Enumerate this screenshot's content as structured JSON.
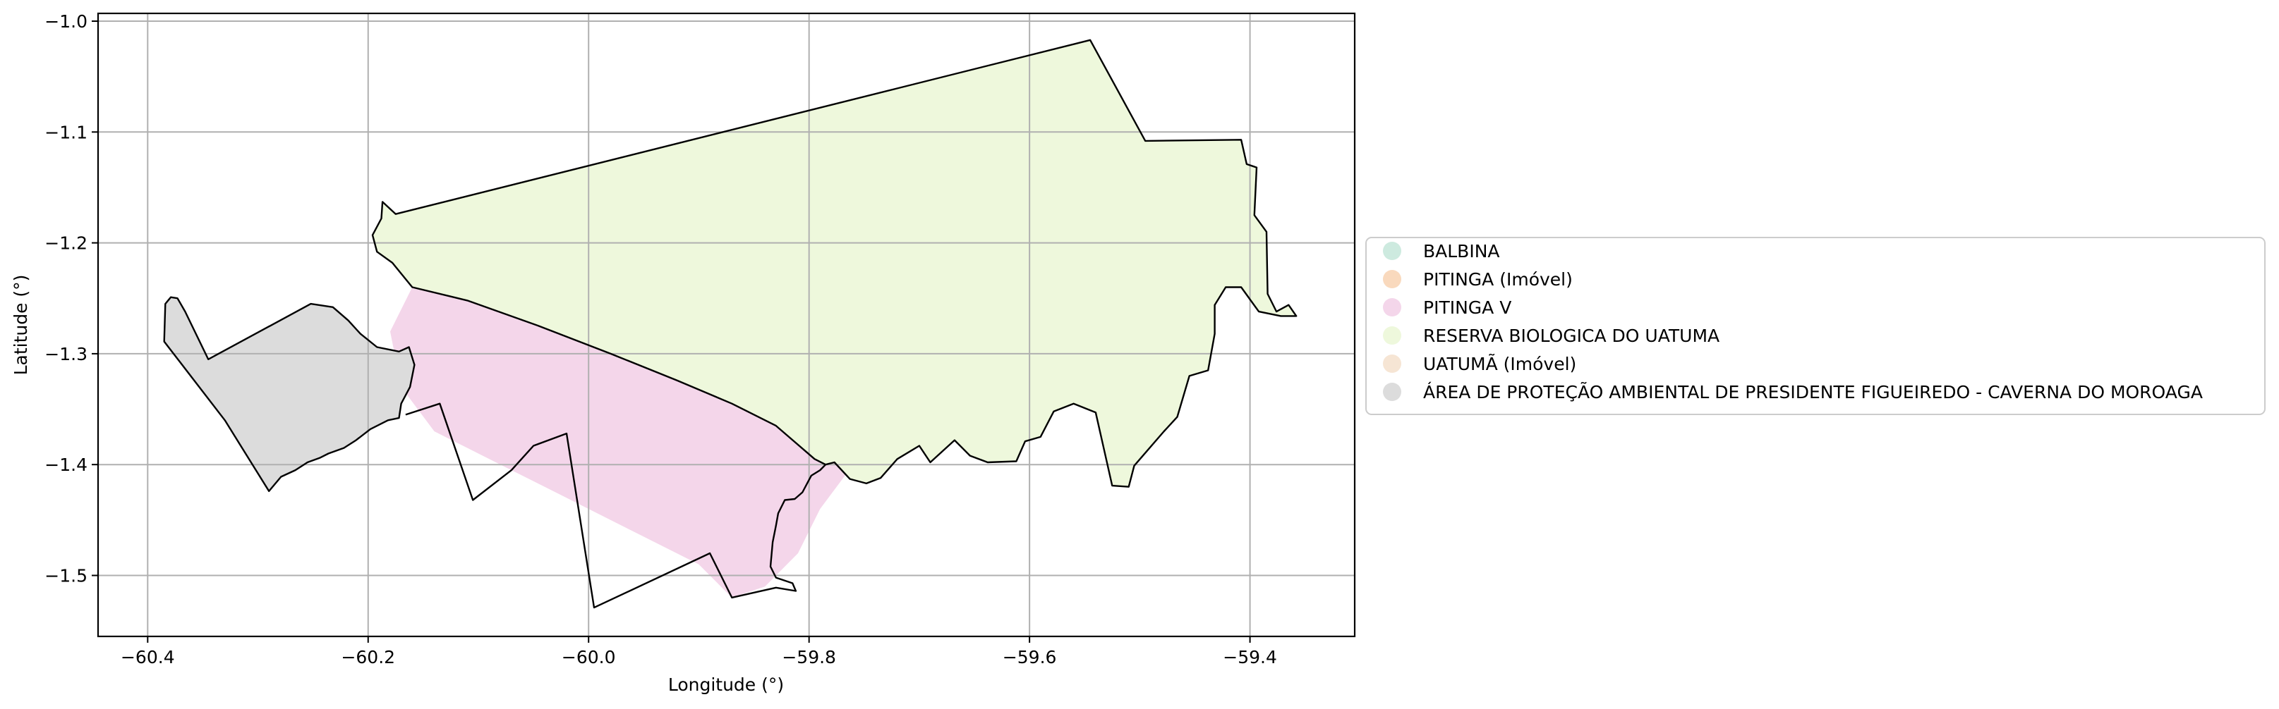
{
  "axes": {
    "xlabel": "Longitude (°)",
    "ylabel": "Latitude (°)",
    "xlim": [
      -60.445,
      -59.305
    ],
    "ylim": [
      -1.555,
      -0.993
    ],
    "grid": true,
    "xticks": [
      -60.4,
      -60.2,
      -60.0,
      -59.8,
      -59.6,
      -59.4
    ],
    "yticks": [
      -1.0,
      -1.1,
      -1.2,
      -1.3,
      -1.4,
      -1.5
    ],
    "xtick_labels": [
      "−60.4",
      "−60.2",
      "−60.0",
      "−59.8",
      "−59.6",
      "−59.4"
    ],
    "ytick_labels": [
      "−1.0",
      "−1.1",
      "−1.2",
      "−1.3",
      "−1.4",
      "−1.5"
    ]
  },
  "legend": {
    "placement": "right",
    "items": [
      {
        "label": "BALBINA",
        "color": "#cdeadf"
      },
      {
        "label": "PITINGA (Imóvel)",
        "color": "#f9d9bd"
      },
      {
        "label": "PITINGA V",
        "color": "#f4d6ea"
      },
      {
        "label": "RESERVA BIOLOGICA DO UATUMA",
        "color": "#eef8dc"
      },
      {
        "label": "UATUMÃ (Imóvel)",
        "color": "#f6e5d4"
      },
      {
        "label": "ÁREA DE PROTEÇÃO AMBIENTAL DE PRESIDENTE FIGUEIREDO - CAVERNA DO MOROAGA",
        "color": "#dcdcdc"
      }
    ]
  },
  "layers": [
    {
      "name": "PITINGA V",
      "fill": "#f4d6ea",
      "outline": false,
      "coords": [
        [
          -60.16,
          -1.24
        ],
        [
          -60.08,
          -1.26
        ],
        [
          -59.98,
          -1.29
        ],
        [
          -59.88,
          -1.33
        ],
        [
          -59.8,
          -1.37
        ],
        [
          -59.76,
          -1.4
        ],
        [
          -59.79,
          -1.44
        ],
        [
          -59.81,
          -1.48
        ],
        [
          -59.84,
          -1.51
        ],
        [
          -59.87,
          -1.52
        ],
        [
          -59.9,
          -1.49
        ],
        [
          -59.96,
          -1.46
        ],
        [
          -60.02,
          -1.43
        ],
        [
          -60.08,
          -1.4
        ],
        [
          -60.14,
          -1.37
        ],
        [
          -60.17,
          -1.33
        ],
        [
          -60.18,
          -1.28
        ]
      ]
    },
    {
      "name": "RESERVA BIOLOGICA DO UATUMA",
      "fill": "#eef8dc",
      "outline": true,
      "coords": [
        [
          -60.187,
          -1.163
        ],
        [
          -60.175,
          -1.174
        ],
        [
          -59.545,
          -1.017
        ],
        [
          -59.495,
          -1.108
        ],
        [
          -59.408,
          -1.107
        ],
        [
          -59.403,
          -1.129
        ],
        [
          -59.394,
          -1.132
        ],
        [
          -59.396,
          -1.175
        ],
        [
          -59.385,
          -1.19
        ],
        [
          -59.384,
          -1.246
        ],
        [
          -59.376,
          -1.262
        ],
        [
          -59.365,
          -1.256
        ],
        [
          -59.358,
          -1.266
        ],
        [
          -59.372,
          -1.266
        ],
        [
          -59.392,
          -1.262
        ],
        [
          -59.408,
          -1.24
        ],
        [
          -59.422,
          -1.24
        ],
        [
          -59.432,
          -1.256
        ],
        [
          -59.432,
          -1.282
        ],
        [
          -59.438,
          -1.315
        ],
        [
          -59.455,
          -1.32
        ],
        [
          -59.466,
          -1.357
        ],
        [
          -59.478,
          -1.37
        ],
        [
          -59.505,
          -1.401
        ],
        [
          -59.51,
          -1.42
        ],
        [
          -59.525,
          -1.419
        ],
        [
          -59.54,
          -1.353
        ],
        [
          -59.56,
          -1.345
        ],
        [
          -59.578,
          -1.352
        ],
        [
          -59.59,
          -1.375
        ],
        [
          -59.604,
          -1.379
        ],
        [
          -59.612,
          -1.397
        ],
        [
          -59.638,
          -1.398
        ],
        [
          -59.654,
          -1.392
        ],
        [
          -59.668,
          -1.378
        ],
        [
          -59.69,
          -1.398
        ],
        [
          -59.7,
          -1.383
        ],
        [
          -59.72,
          -1.395
        ],
        [
          -59.735,
          -1.412
        ],
        [
          -59.748,
          -1.417
        ],
        [
          -59.763,
          -1.413
        ],
        [
          -59.777,
          -1.398
        ],
        [
          -59.785,
          -1.4
        ],
        [
          -59.795,
          -1.395
        ],
        [
          -59.83,
          -1.365
        ],
        [
          -59.87,
          -1.345
        ],
        [
          -59.92,
          -1.324
        ],
        [
          -59.98,
          -1.3
        ],
        [
          -60.045,
          -1.275
        ],
        [
          -60.11,
          -1.252
        ],
        [
          -60.16,
          -1.24
        ],
        [
          -60.178,
          -1.218
        ],
        [
          -60.192,
          -1.208
        ],
        [
          -60.196,
          -1.193
        ],
        [
          -60.188,
          -1.178
        ]
      ]
    },
    {
      "name": "ÁREA DE PROTEÇÃO AMBIENTAL DE PRESIDENTE FIGUEIREDO - CAVERNA DO MOROAGA",
      "fill": "#dcdcdc",
      "outline": true,
      "coords": [
        [
          -60.384,
          -1.255
        ],
        [
          -60.379,
          -1.249
        ],
        [
          -60.373,
          -1.25
        ],
        [
          -60.366,
          -1.262
        ],
        [
          -60.345,
          -1.305
        ],
        [
          -60.252,
          -1.255
        ],
        [
          -60.232,
          -1.258
        ],
        [
          -60.218,
          -1.27
        ],
        [
          -60.207,
          -1.282
        ],
        [
          -60.192,
          -1.294
        ],
        [
          -60.172,
          -1.298
        ],
        [
          -60.163,
          -1.294
        ],
        [
          -60.158,
          -1.31
        ],
        [
          -60.162,
          -1.33
        ],
        [
          -60.17,
          -1.345
        ],
        [
          -60.172,
          -1.358
        ],
        [
          -60.182,
          -1.36
        ],
        [
          -60.198,
          -1.368
        ],
        [
          -60.211,
          -1.378
        ],
        [
          -60.222,
          -1.385
        ],
        [
          -60.236,
          -1.39
        ],
        [
          -60.244,
          -1.394
        ],
        [
          -60.255,
          -1.398
        ],
        [
          -60.266,
          -1.405
        ],
        [
          -60.279,
          -1.411
        ],
        [
          -60.29,
          -1.424
        ],
        [
          -60.33,
          -1.36
        ],
        [
          -60.385,
          -1.289
        ]
      ]
    }
  ],
  "boundary_extra": [
    [
      [
        -60.166,
        -1.355
      ],
      [
        -60.135,
        -1.345
      ],
      [
        -60.105,
        -1.432
      ],
      [
        -60.07,
        -1.405
      ],
      [
        -60.05,
        -1.383
      ],
      [
        -60.02,
        -1.372
      ],
      [
        -59.995,
        -1.529
      ],
      [
        -59.89,
        -1.48
      ],
      [
        -59.87,
        -1.52
      ],
      [
        -59.83,
        -1.511
      ],
      [
        -59.812,
        -1.514
      ],
      [
        -59.815,
        -1.507
      ],
      [
        -59.83,
        -1.502
      ],
      [
        -59.835,
        -1.492
      ],
      [
        -59.833,
        -1.47
      ],
      [
        -59.83,
        -1.455
      ],
      [
        -59.828,
        -1.444
      ],
      [
        -59.822,
        -1.432
      ],
      [
        -59.813,
        -1.431
      ],
      [
        -59.806,
        -1.425
      ],
      [
        -59.798,
        -1.41
      ],
      [
        -59.79,
        -1.405
      ],
      [
        -59.785,
        -1.4
      ]
    ]
  ]
}
